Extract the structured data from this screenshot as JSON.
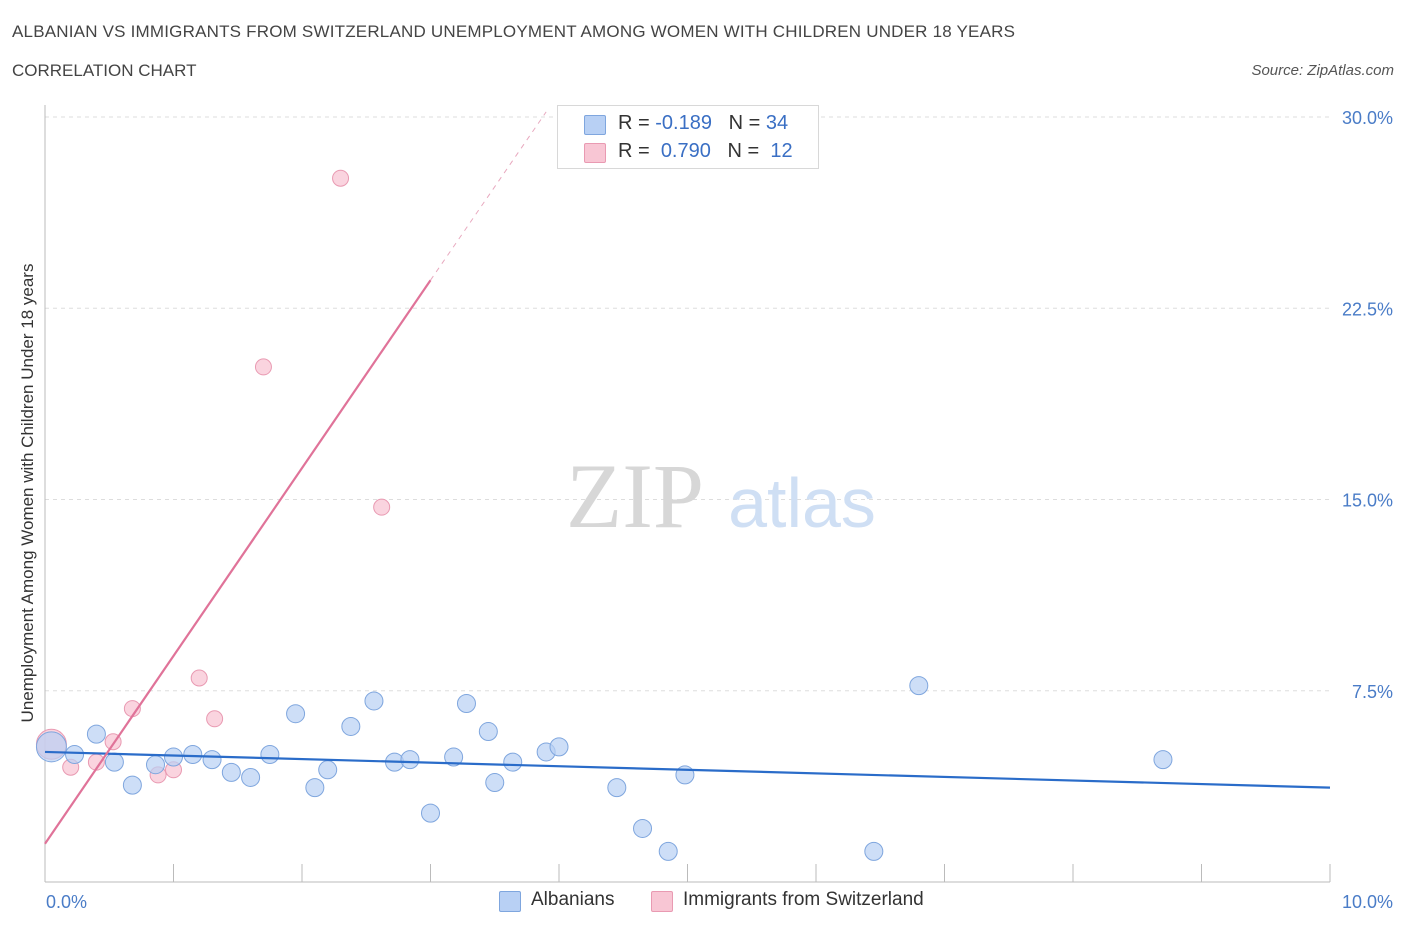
{
  "header": {
    "title": "ALBANIAN VS IMMIGRANTS FROM SWITZERLAND UNEMPLOYMENT AMONG WOMEN WITH CHILDREN UNDER 18 YEARS",
    "subtitle": "CORRELATION CHART",
    "source": "Source: ZipAtlas.com"
  },
  "legend": {
    "albanians": {
      "r_label": "R =",
      "r_value": "-0.189",
      "n_label": "N =",
      "n_value": "34"
    },
    "swiss": {
      "r_label": "R =",
      "r_value": "0.790",
      "n_label": "N =",
      "n_value": "12"
    }
  },
  "bottom_legend": {
    "albanians": "Albanians",
    "swiss": "Immigrants from Switzerland"
  },
  "watermark": {
    "zip": "ZIP",
    "atlas": "atlas"
  },
  "colors": {
    "blue_fill": "#b8d0f4",
    "blue_stroke": "#7fa6de",
    "blue_line": "#2a6cc9",
    "pink_fill": "#f8c6d4",
    "pink_stroke": "#e99ab2",
    "pink_line": "#e07399",
    "axis_label": "#4a7cc7",
    "grid": "#dddddd"
  },
  "chart_data": {
    "type": "scatter",
    "title": "ALBANIAN VS IMMIGRANTS FROM SWITZERLAND UNEMPLOYMENT AMONG WOMEN WITH CHILDREN UNDER 18 YEARS",
    "xlabel": "",
    "ylabel": "Unemployment Among Women with Children Under 18 years",
    "xlim": [
      0,
      10
    ],
    "ylim": [
      0,
      30
    ],
    "x_tick_labels": [
      "0.0%",
      "10.0%"
    ],
    "y_tick_values": [
      7.5,
      15.0,
      22.5,
      30.0
    ],
    "y_tick_labels": [
      "7.5%",
      "15.0%",
      "22.5%",
      "30.0%"
    ],
    "grid": true,
    "series": [
      {
        "name": "Albanians",
        "r": -0.189,
        "n": 34,
        "trend": {
          "x": [
            0.0,
            10.0
          ],
          "y": [
            5.1,
            3.7
          ]
        },
        "points": [
          {
            "x": 0.05,
            "y": 5.3,
            "big": true
          },
          {
            "x": 0.23,
            "y": 5.0
          },
          {
            "x": 0.4,
            "y": 5.8
          },
          {
            "x": 0.54,
            "y": 4.7
          },
          {
            "x": 0.68,
            "y": 3.8
          },
          {
            "x": 0.86,
            "y": 4.6
          },
          {
            "x": 1.0,
            "y": 4.9
          },
          {
            "x": 1.15,
            "y": 5.0
          },
          {
            "x": 1.3,
            "y": 4.8
          },
          {
            "x": 1.45,
            "y": 4.3
          },
          {
            "x": 1.6,
            "y": 4.1
          },
          {
            "x": 1.75,
            "y": 5.0
          },
          {
            "x": 1.95,
            "y": 6.6
          },
          {
            "x": 2.1,
            "y": 3.7
          },
          {
            "x": 2.2,
            "y": 4.4
          },
          {
            "x": 2.38,
            "y": 6.1
          },
          {
            "x": 2.56,
            "y": 7.1
          },
          {
            "x": 2.72,
            "y": 4.7
          },
          {
            "x": 2.84,
            "y": 4.8
          },
          {
            "x": 3.0,
            "y": 2.7
          },
          {
            "x": 3.18,
            "y": 4.9
          },
          {
            "x": 3.28,
            "y": 7.0
          },
          {
            "x": 3.5,
            "y": 3.9
          },
          {
            "x": 3.45,
            "y": 5.9
          },
          {
            "x": 3.64,
            "y": 4.7
          },
          {
            "x": 3.9,
            "y": 5.1
          },
          {
            "x": 4.0,
            "y": 5.3
          },
          {
            "x": 4.45,
            "y": 3.7
          },
          {
            "x": 4.65,
            "y": 2.1
          },
          {
            "x": 4.85,
            "y": 1.2
          },
          {
            "x": 4.98,
            "y": 4.2
          },
          {
            "x": 6.45,
            "y": 1.2
          },
          {
            "x": 6.8,
            "y": 7.7
          },
          {
            "x": 8.7,
            "y": 4.8
          }
        ]
      },
      {
        "name": "Immigrants from Switzerland",
        "r": 0.79,
        "n": 12,
        "trend": {
          "x": [
            0.0,
            3.0
          ],
          "y": [
            1.5,
            23.6
          ]
        },
        "trend_dashed": {
          "x": [
            3.0,
            3.9
          ],
          "y": [
            23.6,
            30.2
          ]
        },
        "points": [
          {
            "x": 0.05,
            "y": 5.4,
            "big": true
          },
          {
            "x": 0.2,
            "y": 4.5
          },
          {
            "x": 0.4,
            "y": 4.7
          },
          {
            "x": 0.53,
            "y": 5.5
          },
          {
            "x": 0.68,
            "y": 6.8
          },
          {
            "x": 0.88,
            "y": 4.2
          },
          {
            "x": 1.0,
            "y": 4.4
          },
          {
            "x": 1.2,
            "y": 8.0
          },
          {
            "x": 1.32,
            "y": 6.4
          },
          {
            "x": 1.7,
            "y": 20.2
          },
          {
            "x": 2.3,
            "y": 27.6
          },
          {
            "x": 2.62,
            "y": 14.7
          }
        ]
      }
    ]
  }
}
